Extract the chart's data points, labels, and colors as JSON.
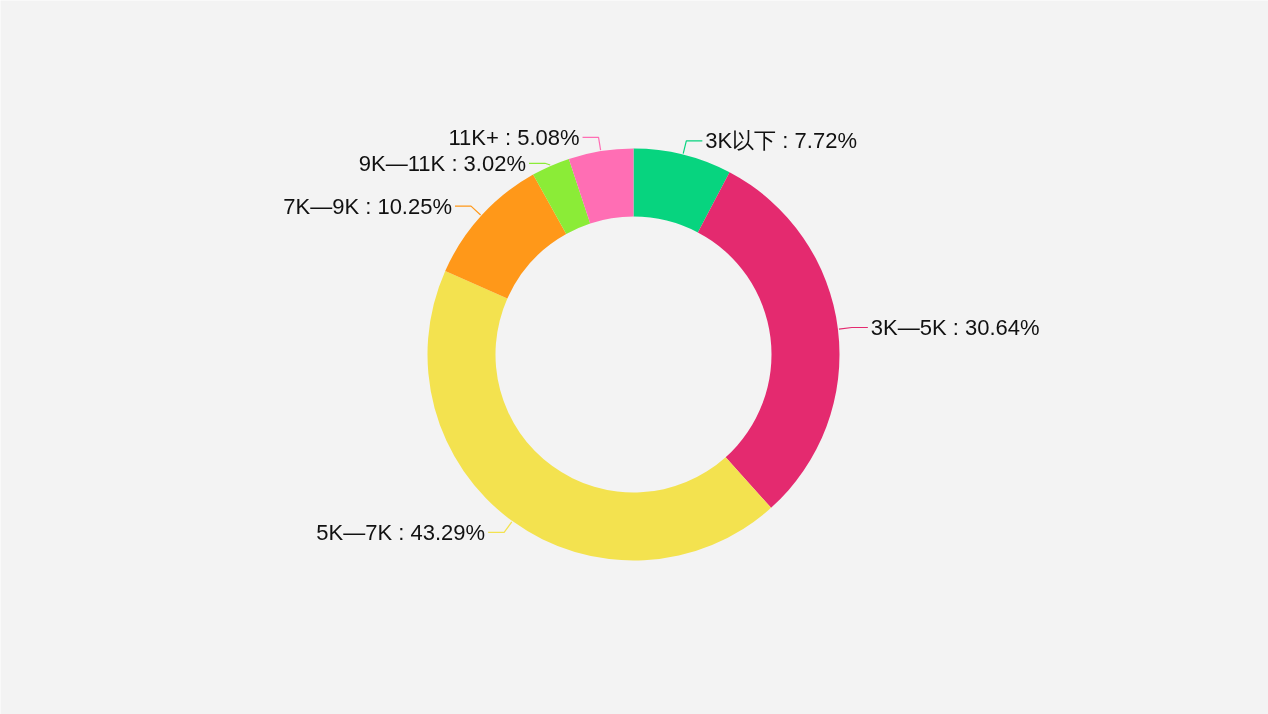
{
  "chart_data": {
    "type": "donut",
    "categories": [
      "3K以下",
      "3K—5K",
      "5K—7K",
      "7K—9K",
      "9K—11K",
      "11K+"
    ],
    "values": [
      7.72,
      30.64,
      43.29,
      10.25,
      3.02,
      5.08
    ],
    "value_labels": [
      "7.72%",
      "30.64%",
      "43.29%",
      "10.25%",
      "3.02%",
      "5.08%"
    ],
    "colors": [
      "#07d47f",
      "#e42a6f",
      "#f3e24f",
      "#ff9819",
      "#8bec37",
      "#ff6eb4"
    ]
  }
}
